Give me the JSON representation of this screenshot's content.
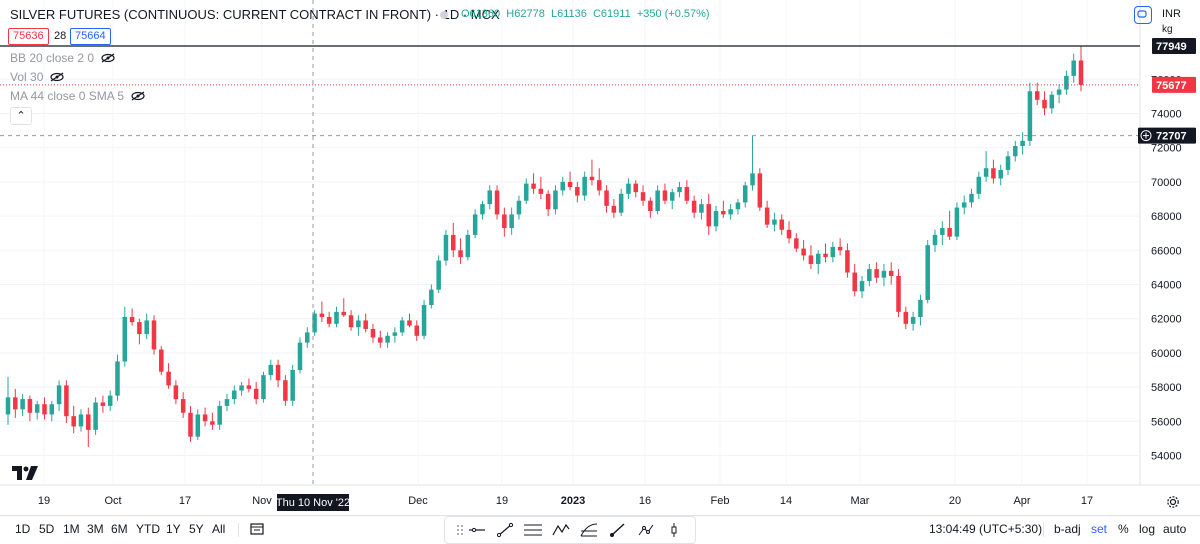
{
  "title": "SILVER FUTURES (CONTINUOUS: CURRENT CONTRACT IN FRONT) · 1D · MCX",
  "ohlc": {
    "o": "O61360",
    "h": "H62778",
    "l": "L61136",
    "c": "C61911",
    "chg": "+350 (+0.57%)"
  },
  "bid_box": "75636",
  "spread": "28",
  "ask_box": "75664",
  "indicators": [
    "BB 20 close 2 0",
    "Vol 30",
    "MA 44 close 0 SMA 5"
  ],
  "currency": "INR",
  "unit": "kg",
  "price_labels": {
    "high": "77949",
    "last": "75677",
    "crosshair": "72707"
  },
  "crosshair_date": "Thu 10 Nov '22",
  "timeframes": [
    "1D",
    "5D",
    "1M",
    "3M",
    "6M",
    "YTD",
    "1Y",
    "5Y",
    "All"
  ],
  "clock": "13:04:49 (UTC+5:30)",
  "right_buttons": {
    "badj": "b-adj",
    "set": "set",
    "pct": "%",
    "log": "log",
    "auto": "auto"
  },
  "colors": {
    "up": "#26a69a",
    "down": "#f23645",
    "crosshair": "#9598a1",
    "accent": "#2962ff"
  },
  "chart_data": {
    "type": "candlestick",
    "y_ticks": [
      54000,
      56000,
      58000,
      60000,
      62000,
      64000,
      66000,
      68000,
      70000,
      72000,
      74000,
      76000
    ],
    "ylim": [
      53000,
      78500
    ],
    "x_ticks": [
      "19",
      "Oct",
      "17",
      "Nov",
      "Dec",
      "19",
      "2023",
      "16",
      "Feb",
      "14",
      "Mar",
      "20",
      "Apr",
      "17"
    ],
    "grid": true,
    "candles": [
      [
        56400,
        58600,
        55800,
        57400
      ],
      [
        57400,
        57900,
        56200,
        56700
      ],
      [
        56700,
        57600,
        56300,
        57300
      ],
      [
        57300,
        57500,
        56000,
        56500
      ],
      [
        56500,
        57200,
        56100,
        57000
      ],
      [
        57000,
        57400,
        56100,
        56400
      ],
      [
        56400,
        57200,
        56000,
        57000
      ],
      [
        57000,
        58400,
        56600,
        58100
      ],
      [
        58100,
        58400,
        55900,
        56300
      ],
      [
        56300,
        56900,
        55300,
        55700
      ],
      [
        55700,
        56700,
        55400,
        56400
      ],
      [
        56400,
        56800,
        54500,
        55500
      ],
      [
        55500,
        57400,
        55200,
        57100
      ],
      [
        57100,
        57500,
        56500,
        56900
      ],
      [
        56900,
        57800,
        56600,
        57500
      ],
      [
        57500,
        59900,
        57200,
        59500
      ],
      [
        59500,
        62700,
        59200,
        62100
      ],
      [
        62100,
        62600,
        61600,
        61800
      ],
      [
        61800,
        62000,
        60500,
        61100
      ],
      [
        61100,
        62300,
        60800,
        61900
      ],
      [
        61900,
        62200,
        59900,
        60200
      ],
      [
        60200,
        60400,
        58700,
        58900
      ],
      [
        58900,
        59400,
        57900,
        58100
      ],
      [
        58100,
        58400,
        57000,
        57300
      ],
      [
        57300,
        57700,
        56200,
        56500
      ],
      [
        56500,
        56900,
        54800,
        55100
      ],
      [
        55100,
        56700,
        54900,
        56400
      ],
      [
        56400,
        56800,
        55700,
        56000
      ],
      [
        56000,
        56500,
        55500,
        55800
      ],
      [
        55800,
        57200,
        55500,
        56900
      ],
      [
        56900,
        57600,
        56600,
        57300
      ],
      [
        57300,
        58100,
        57000,
        57800
      ],
      [
        57800,
        58300,
        57500,
        58100
      ],
      [
        58100,
        58500,
        57700,
        57900
      ],
      [
        57900,
        58300,
        57000,
        57300
      ],
      [
        57300,
        58900,
        57100,
        58700
      ],
      [
        58700,
        59600,
        58400,
        59300
      ],
      [
        59300,
        59600,
        58000,
        58400
      ],
      [
        58400,
        58700,
        56900,
        57200
      ],
      [
        57200,
        59300,
        56900,
        59000
      ],
      [
        59000,
        60900,
        58800,
        60600
      ],
      [
        60600,
        61500,
        60300,
        61200
      ],
      [
        61200,
        62500,
        61000,
        62300
      ],
      [
        62300,
        63000,
        61800,
        62100
      ],
      [
        62100,
        62400,
        61500,
        61700
      ],
      [
        61700,
        62700,
        61500,
        62400
      ],
      [
        62400,
        63200,
        62100,
        62200
      ],
      [
        62200,
        62500,
        61300,
        61500
      ],
      [
        61500,
        62200,
        61000,
        61900
      ],
      [
        61900,
        62300,
        61200,
        61400
      ],
      [
        61400,
        61700,
        60600,
        60900
      ],
      [
        60900,
        61300,
        60300,
        60600
      ],
      [
        60600,
        61200,
        60300,
        61000
      ],
      [
        61000,
        61500,
        60600,
        61200
      ],
      [
        61200,
        62100,
        61000,
        61900
      ],
      [
        61900,
        62300,
        61500,
        61600
      ],
      [
        61600,
        61900,
        60700,
        61000
      ],
      [
        61000,
        63100,
        60800,
        62800
      ],
      [
        62800,
        64000,
        62600,
        63700
      ],
      [
        63700,
        65700,
        63500,
        65400
      ],
      [
        65400,
        67200,
        65100,
        66900
      ],
      [
        66900,
        67600,
        65600,
        66000
      ],
      [
        66000,
        66700,
        65200,
        65600
      ],
      [
        65600,
        67200,
        65400,
        66900
      ],
      [
        66900,
        68400,
        66700,
        68100
      ],
      [
        68100,
        68900,
        67800,
        68700
      ],
      [
        68700,
        69800,
        68400,
        69500
      ],
      [
        69500,
        69800,
        67800,
        68100
      ],
      [
        68100,
        68500,
        66800,
        67300
      ],
      [
        67300,
        68500,
        66900,
        68100
      ],
      [
        68100,
        69200,
        67800,
        68900
      ],
      [
        68900,
        70200,
        68700,
        69900
      ],
      [
        69900,
        70500,
        69300,
        69600
      ],
      [
        69600,
        70300,
        69000,
        69300
      ],
      [
        69300,
        69500,
        68000,
        68400
      ],
      [
        68400,
        69800,
        68100,
        69500
      ],
      [
        69500,
        70300,
        69200,
        70000
      ],
      [
        70000,
        70600,
        69500,
        69700
      ],
      [
        69700,
        70000,
        68800,
        69200
      ],
      [
        69200,
        70600,
        68900,
        70300
      ],
      [
        70300,
        71300,
        69800,
        70100
      ],
      [
        70100,
        70800,
        69200,
        69500
      ],
      [
        69500,
        69800,
        68200,
        68600
      ],
      [
        68600,
        69000,
        67900,
        68200
      ],
      [
        68200,
        69600,
        68000,
        69300
      ],
      [
        69300,
        70200,
        69000,
        69900
      ],
      [
        69900,
        70100,
        69100,
        69400
      ],
      [
        69400,
        69800,
        68600,
        68900
      ],
      [
        68900,
        69100,
        67900,
        68300
      ],
      [
        68300,
        69800,
        68100,
        69500
      ],
      [
        69500,
        69900,
        68700,
        68900
      ],
      [
        68900,
        69600,
        68400,
        69400
      ],
      [
        69400,
        70000,
        69100,
        69700
      ],
      [
        69700,
        70100,
        68700,
        68900
      ],
      [
        68900,
        69200,
        67900,
        68200
      ],
      [
        68200,
        69000,
        67800,
        68700
      ],
      [
        68700,
        69300,
        66900,
        67400
      ],
      [
        67400,
        68600,
        67100,
        68300
      ],
      [
        68300,
        68900,
        67900,
        68100
      ],
      [
        68100,
        68700,
        67800,
        68400
      ],
      [
        68400,
        69000,
        68100,
        68800
      ],
      [
        68800,
        70000,
        68500,
        69800
      ],
      [
        69800,
        72707,
        69500,
        70500
      ],
      [
        70500,
        70800,
        68300,
        68500
      ],
      [
        68500,
        68900,
        67300,
        67500
      ],
      [
        67500,
        68200,
        67100,
        67800
      ],
      [
        67800,
        68100,
        66900,
        67200
      ],
      [
        67200,
        67700,
        66400,
        66700
      ],
      [
        66700,
        67000,
        65900,
        66100
      ],
      [
        66100,
        66600,
        65400,
        65700
      ],
      [
        65700,
        66300,
        64900,
        65200
      ],
      [
        65200,
        66000,
        64600,
        65800
      ],
      [
        65800,
        66400,
        65300,
        65600
      ],
      [
        65600,
        66500,
        65300,
        66200
      ],
      [
        66200,
        66700,
        65700,
        66000
      ],
      [
        66000,
        66400,
        64400,
        64700
      ],
      [
        64700,
        65200,
        63300,
        63600
      ],
      [
        63600,
        64500,
        63200,
        64200
      ],
      [
        64200,
        65200,
        63900,
        64900
      ],
      [
        64900,
        65300,
        64100,
        64400
      ],
      [
        64400,
        65200,
        63900,
        64800
      ],
      [
        64800,
        65300,
        64000,
        64500
      ],
      [
        64500,
        64900,
        62100,
        62400
      ],
      [
        62400,
        62700,
        61400,
        61700
      ],
      [
        61700,
        62400,
        61300,
        62100
      ],
      [
        62100,
        63400,
        61600,
        63100
      ],
      [
        63100,
        66600,
        62900,
        66300
      ],
      [
        66300,
        67200,
        65900,
        66900
      ],
      [
        66900,
        67700,
        66300,
        67300
      ],
      [
        67300,
        68300,
        66600,
        66800
      ],
      [
        66800,
        68800,
        66600,
        68500
      ],
      [
        68500,
        69200,
        68100,
        68800
      ],
      [
        68800,
        69600,
        68500,
        69300
      ],
      [
        69300,
        70600,
        69000,
        70300
      ],
      [
        70300,
        71800,
        70000,
        70800
      ],
      [
        70800,
        71300,
        69900,
        70200
      ],
      [
        70200,
        71000,
        69800,
        70700
      ],
      [
        70700,
        71800,
        70400,
        71500
      ],
      [
        71500,
        72400,
        71200,
        72100
      ],
      [
        72100,
        72900,
        71600,
        72400
      ],
      [
        72400,
        75800,
        72100,
        75300
      ],
      [
        75300,
        75800,
        74500,
        74800
      ],
      [
        74800,
        75300,
        73900,
        74300
      ],
      [
        74300,
        75300,
        74000,
        75100
      ],
      [
        75100,
        75700,
        74600,
        75400
      ],
      [
        75400,
        76500,
        75100,
        76200
      ],
      [
        76200,
        77500,
        75800,
        77100
      ],
      [
        77100,
        77949,
        75300,
        75677
      ]
    ]
  }
}
